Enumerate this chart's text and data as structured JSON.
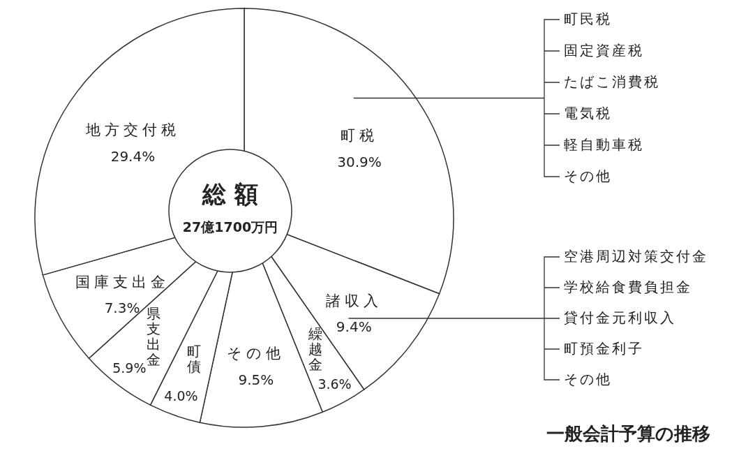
{
  "chart_data": {
    "type": "pie",
    "categories": [
      "町税",
      "諸収入",
      "繰越金",
      "その他",
      "町債",
      "県支出金",
      "国庫支出金",
      "地方交付税"
    ],
    "values": [
      30.9,
      9.4,
      3.6,
      9.5,
      4.0,
      5.9,
      7.3,
      29.4
    ],
    "value_labels": [
      "30.9%",
      "9.4%",
      "3.6%",
      "9.5%",
      "4.0%",
      "5.9%",
      "7.3%",
      "29.4%"
    ],
    "colors": [
      "#ffffff",
      "#ffffff",
      "#ffffff",
      "#ffffff",
      "#ffffff",
      "#ffffff",
      "#ffffff",
      "#ffffff"
    ],
    "annotations": [
      "総 額",
      "27億1700万円",
      "町民税",
      "固定資産税",
      "たばこ消費税",
      "電気税",
      "軽自動車税",
      "その他",
      "空港周辺対策交付金",
      "学校給食費負担金",
      "貸付金元利収入",
      "町預金利子",
      "その他",
      "一般会計予算の推移"
    ]
  }
}
